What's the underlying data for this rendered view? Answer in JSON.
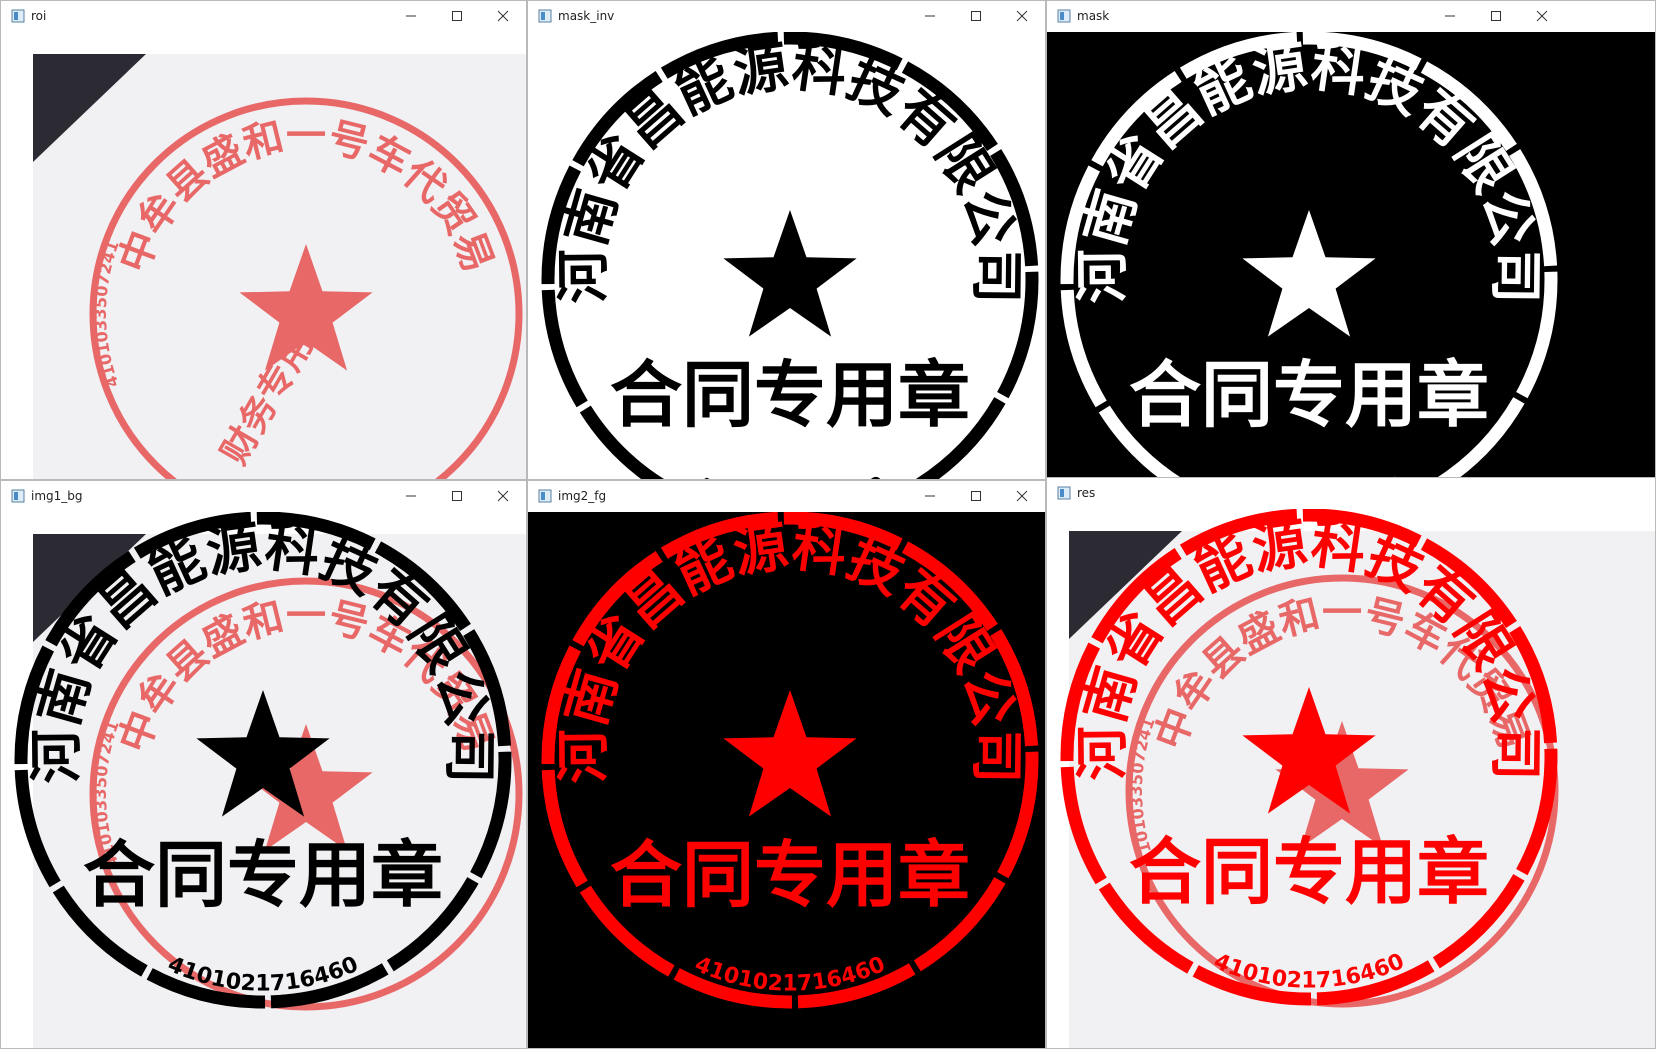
{
  "colors": {
    "stamp_red": "#ff0000",
    "pale_red": "#e86868",
    "paper": "#f1f1f4",
    "dark_bg": "#2c2a32",
    "mask_black": "#000000",
    "mask_white": "#ffffff"
  },
  "windows": [
    {
      "id": "roi",
      "title": "roi"
    },
    {
      "id": "mask_inv",
      "title": "mask_inv"
    },
    {
      "id": "mask",
      "title": "mask"
    },
    {
      "id": "img1_bg",
      "title": "img1_bg"
    },
    {
      "id": "img2_fg",
      "title": "img2_fg"
    },
    {
      "id": "res",
      "title": "res"
    }
  ],
  "new_stamp": {
    "company": "河南省昌能源科技有限公司",
    "purpose": "合同专用章",
    "number": "4101021716460"
  },
  "old_stamp": {
    "company": "中牟县盛和一号车代贸易",
    "purpose": "财务专用章",
    "number": "4101033507241"
  },
  "icons": {
    "window": "opencv-window-icon",
    "minimize": "minimize-icon",
    "maximize": "maximize-icon",
    "close": "close-icon"
  }
}
